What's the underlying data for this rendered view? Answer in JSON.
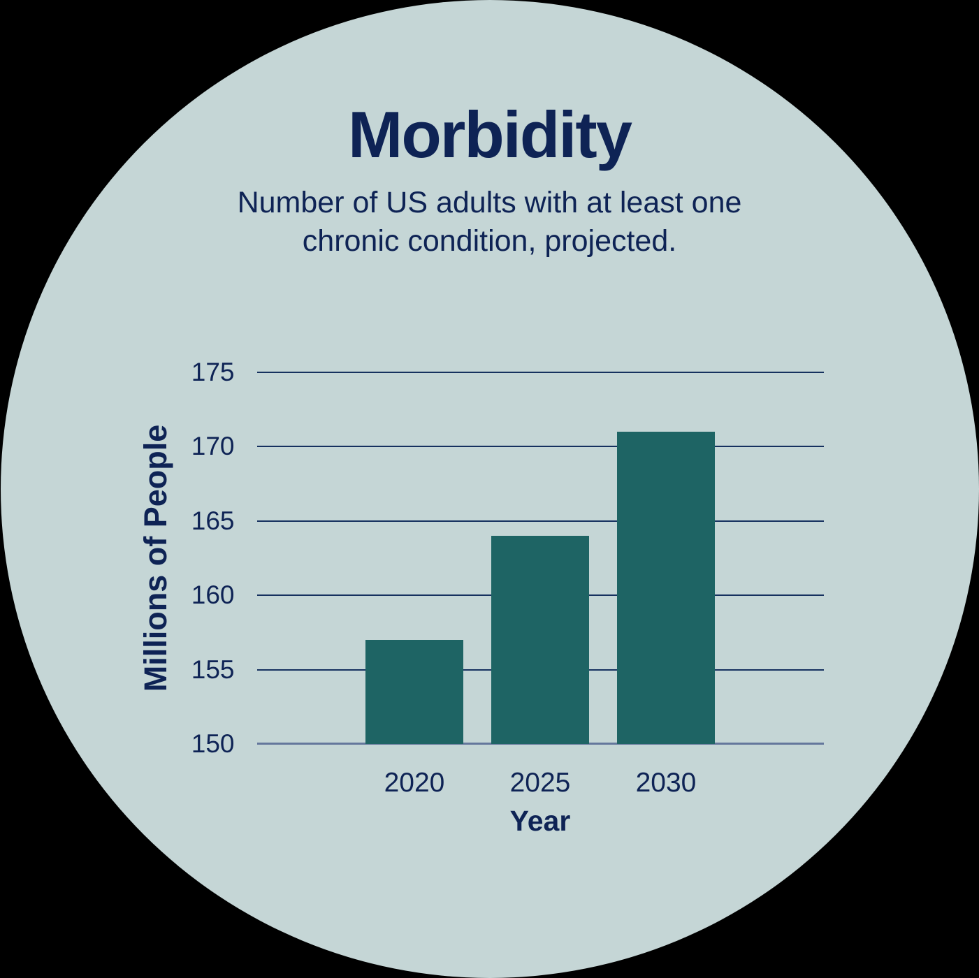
{
  "title": "Morbidity",
  "subtitle": {
    "line1": "Number of US adults with at least one",
    "line2": "chronic condition, projected."
  },
  "chart_data": {
    "type": "bar",
    "title": "Morbidity",
    "subtitle": "Number of US adults with at least one chronic condition, projected.",
    "categories": [
      "2020",
      "2025",
      "2030"
    ],
    "values": [
      157,
      164,
      171
    ],
    "xlabel": "Year",
    "ylabel": "Millions of People",
    "ylim": [
      150,
      175
    ],
    "yticks": [
      150,
      155,
      160,
      165,
      170,
      175
    ],
    "grid": true,
    "legend": false
  },
  "colors": {
    "page_background": "#000000",
    "circle_background": "#c5d6d6",
    "text_navy": "#0e2355",
    "gridline": "#16315f",
    "axis_line": "#64779c",
    "bar_teal": "#1e6464"
  }
}
